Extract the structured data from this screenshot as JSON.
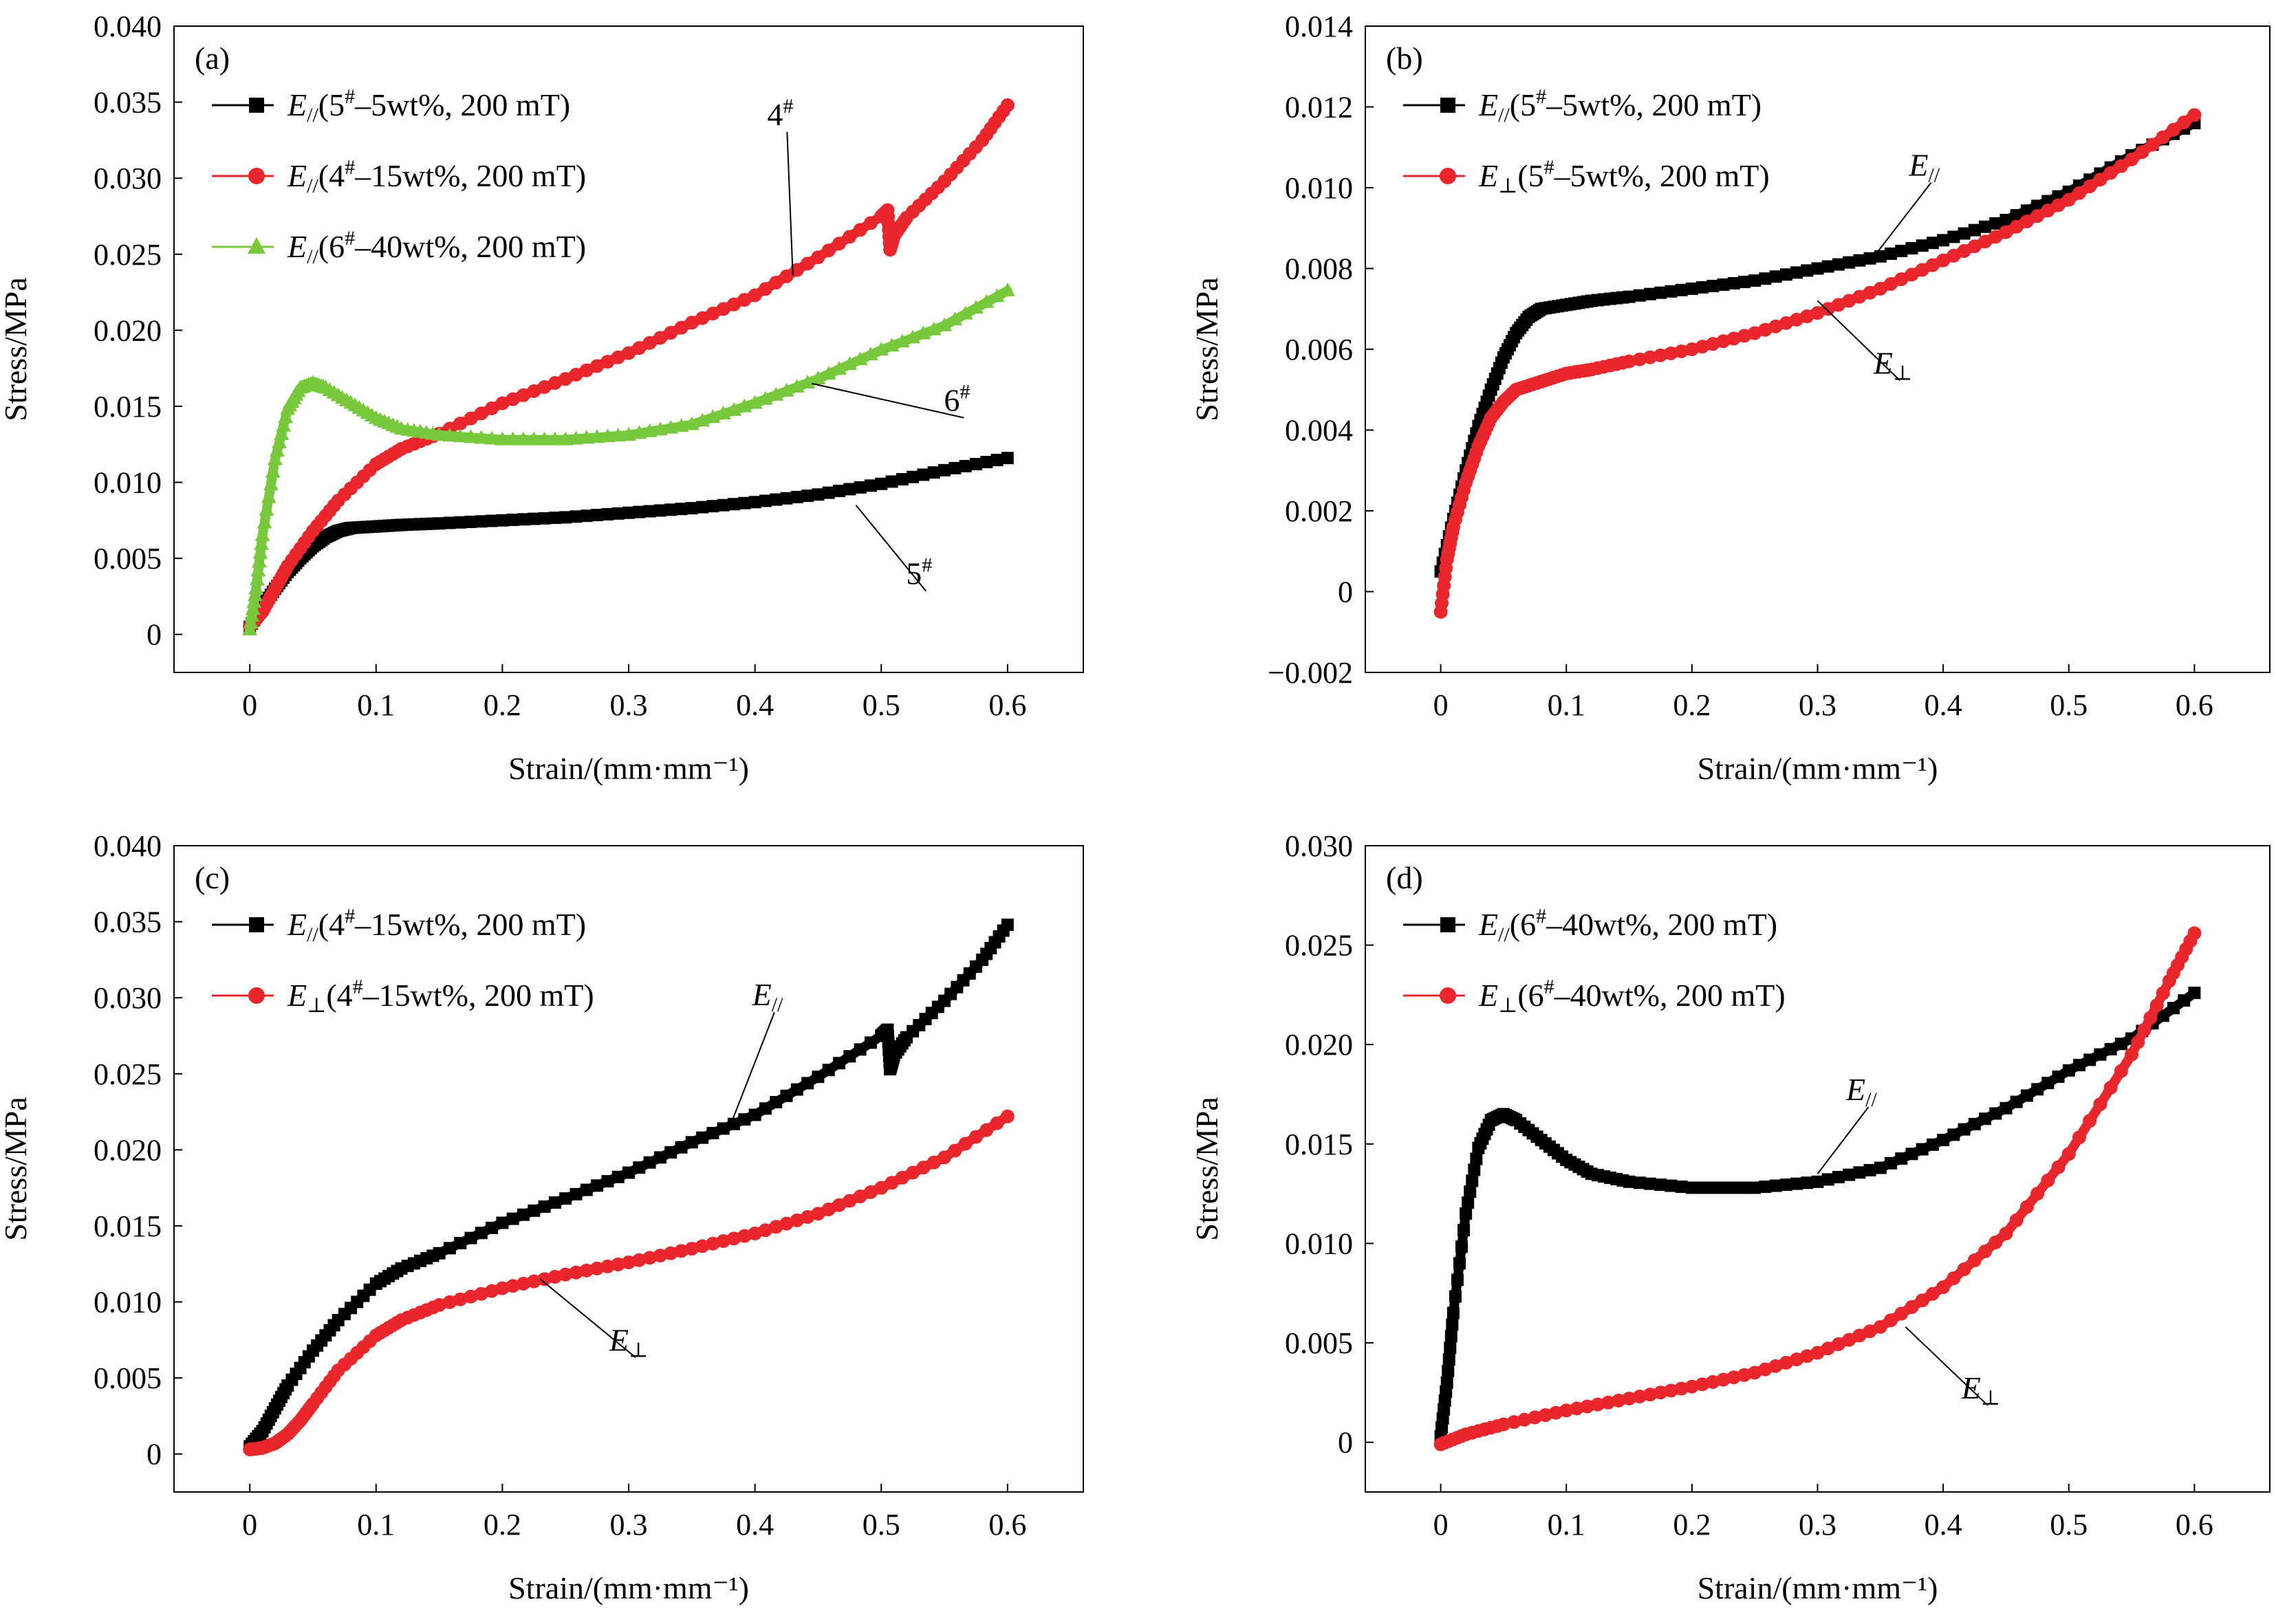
{
  "chart_data": [
    {
      "id": "a",
      "type": "line",
      "panel_label": "(a)",
      "xlabel": "Strain/(mm·mm⁻¹)",
      "ylabel": "Stress/MPa",
      "xlim": [
        -0.06,
        0.66
      ],
      "ylim": [
        -0.0025,
        0.04
      ],
      "xticks": [
        0,
        0.1,
        0.2,
        0.3,
        0.4,
        0.5,
        0.6
      ],
      "xtick_labels": [
        "0",
        "0.1",
        "0.2",
        "0.3",
        "0.4",
        "0.5",
        "0.6"
      ],
      "yticks": [
        0,
        0.005,
        0.01,
        0.015,
        0.02,
        0.025,
        0.03,
        0.035,
        0.04
      ],
      "ytick_labels": [
        "0",
        "0.005",
        "0.010",
        "0.015",
        "0.020",
        "0.025",
        "0.030",
        "0.035",
        "0.040"
      ],
      "legend_position": "top-left",
      "series": [
        {
          "name": "E//(5#–5wt%, 200 mT)",
          "legend_parts": [
            "E",
            "//",
            "(5",
            "#",
            "–5wt%, 200 mT)"
          ],
          "color": "#000000",
          "marker": "square",
          "x": [
            0,
            0.01,
            0.02,
            0.03,
            0.04,
            0.05,
            0.06,
            0.07,
            0.08,
            0.1,
            0.12,
            0.15,
            0.2,
            0.25,
            0.3,
            0.35,
            0.4,
            0.45,
            0.5,
            0.55,
            0.6
          ],
          "y": [
            0.0005,
            0.0018,
            0.003,
            0.0041,
            0.005,
            0.0058,
            0.0064,
            0.0068,
            0.007,
            0.0071,
            0.0072,
            0.0073,
            0.0075,
            0.0077,
            0.008,
            0.0083,
            0.0087,
            0.0092,
            0.0099,
            0.0108,
            0.0116
          ]
        },
        {
          "name": "E//(4#–15wt%, 200 mT)",
          "legend_parts": [
            "E",
            "//",
            "(4",
            "#",
            "–15wt%, 200 mT)"
          ],
          "color": "#e8262b",
          "marker": "circle",
          "x": [
            0,
            0.01,
            0.02,
            0.03,
            0.05,
            0.07,
            0.1,
            0.12,
            0.15,
            0.2,
            0.25,
            0.3,
            0.35,
            0.4,
            0.45,
            0.5,
            0.505,
            0.507,
            0.51,
            0.52,
            0.55,
            0.58,
            0.6
          ],
          "y": [
            0.0005,
            0.0015,
            0.003,
            0.0045,
            0.0068,
            0.0088,
            0.0112,
            0.0122,
            0.0132,
            0.0152,
            0.0168,
            0.0185,
            0.0205,
            0.0223,
            0.0248,
            0.0275,
            0.0279,
            0.0253,
            0.0262,
            0.0274,
            0.0298,
            0.0325,
            0.0348
          ]
        },
        {
          "name": "E//(6#–40wt%, 200 mT)",
          "legend_parts": [
            "E",
            "//",
            "(6",
            "#",
            "–40wt%, 200 mT)"
          ],
          "color": "#78c83c",
          "marker": "triangle",
          "x": [
            0,
            0.005,
            0.01,
            0.02,
            0.03,
            0.04,
            0.05,
            0.06,
            0.08,
            0.1,
            0.12,
            0.15,
            0.2,
            0.25,
            0.3,
            0.35,
            0.4,
            0.45,
            0.5,
            0.55,
            0.6
          ],
          "y": [
            0.0003,
            0.003,
            0.0065,
            0.0115,
            0.0148,
            0.0162,
            0.0165,
            0.0162,
            0.0152,
            0.0142,
            0.0135,
            0.0131,
            0.0128,
            0.0128,
            0.0131,
            0.0138,
            0.0152,
            0.0168,
            0.0187,
            0.0203,
            0.0226
          ]
        }
      ],
      "annotations": [
        {
          "base": "4",
          "sup": "#",
          "x": 0.42,
          "y": 0.0335,
          "ax": 0.43,
          "ay": 0.0236
        },
        {
          "base": "6",
          "sup": "#",
          "x": 0.56,
          "y": 0.0147,
          "ax": 0.445,
          "ay": 0.0165
        },
        {
          "base": "5",
          "sup": "#",
          "x": 0.53,
          "y": 0.0033,
          "ax": 0.48,
          "ay": 0.0085
        }
      ]
    },
    {
      "id": "b",
      "type": "line",
      "panel_label": "(b)",
      "xlabel": "Strain/(mm·mm⁻¹)",
      "ylabel": "Stress/MPa",
      "xlim": [
        -0.06,
        0.66
      ],
      "ylim": [
        -0.002,
        0.014
      ],
      "xticks": [
        0,
        0.1,
        0.2,
        0.3,
        0.4,
        0.5,
        0.6
      ],
      "xtick_labels": [
        "0",
        "0.1",
        "0.2",
        "0.3",
        "0.4",
        "0.5",
        "0.6"
      ],
      "yticks": [
        -0.002,
        0,
        0.002,
        0.004,
        0.006,
        0.008,
        0.01,
        0.012,
        0.014
      ],
      "ytick_labels": [
        "−0.002",
        "0",
        "0.002",
        "0.004",
        "0.006",
        "0.008",
        "0.010",
        "0.012",
        "0.014"
      ],
      "legend_position": "top-left",
      "series": [
        {
          "name": "E//(5#–5wt%, 200 mT)",
          "legend_parts": [
            "E",
            "//",
            "(5",
            "#",
            "–5wt%, 200 mT)"
          ],
          "color": "#000000",
          "marker": "square",
          "x": [
            0,
            0.01,
            0.02,
            0.03,
            0.04,
            0.05,
            0.06,
            0.07,
            0.08,
            0.1,
            0.12,
            0.15,
            0.2,
            0.25,
            0.3,
            0.35,
            0.4,
            0.45,
            0.5,
            0.55,
            0.6
          ],
          "y": [
            0.0005,
            0.0018,
            0.003,
            0.0041,
            0.005,
            0.0058,
            0.0064,
            0.0068,
            0.007,
            0.0071,
            0.0072,
            0.0073,
            0.0075,
            0.0077,
            0.008,
            0.0083,
            0.0087,
            0.0092,
            0.0099,
            0.0108,
            0.0116
          ]
        },
        {
          "name": "E⊥(5#–5wt%, 200 mT)",
          "legend_parts": [
            "E",
            "⊥",
            "(5",
            "#",
            "–5wt%, 200 mT)"
          ],
          "color": "#e8262b",
          "marker": "circle",
          "x": [
            0,
            0.005,
            0.01,
            0.02,
            0.03,
            0.04,
            0.05,
            0.06,
            0.08,
            0.1,
            0.12,
            0.15,
            0.2,
            0.25,
            0.3,
            0.35,
            0.4,
            0.45,
            0.5,
            0.55,
            0.6
          ],
          "y": [
            -0.0005,
            0.0008,
            0.0016,
            0.0027,
            0.0036,
            0.0043,
            0.0047,
            0.005,
            0.0052,
            0.0054,
            0.0055,
            0.0057,
            0.006,
            0.0064,
            0.0069,
            0.0075,
            0.0082,
            0.0089,
            0.0097,
            0.0107,
            0.0118
          ]
        }
      ],
      "annotations": [
        {
          "base": "E",
          "sub": "//",
          "x": 0.385,
          "y": 0.0103,
          "ax": 0.34,
          "ay": 0.0081
        },
        {
          "base": "E",
          "sub": "⊥",
          "x": 0.36,
          "y": 0.0054,
          "ax": 0.3,
          "ay": 0.0072
        }
      ]
    },
    {
      "id": "c",
      "type": "line",
      "panel_label": "(c)",
      "xlabel": "Strain/(mm·mm⁻¹)",
      "ylabel": "Stress/MPa",
      "xlim": [
        -0.06,
        0.66
      ],
      "ylim": [
        -0.0025,
        0.04
      ],
      "xticks": [
        0,
        0.1,
        0.2,
        0.3,
        0.4,
        0.5,
        0.6
      ],
      "xtick_labels": [
        "0",
        "0.1",
        "0.2",
        "0.3",
        "0.4",
        "0.5",
        "0.6"
      ],
      "yticks": [
        0,
        0.005,
        0.01,
        0.015,
        0.02,
        0.025,
        0.03,
        0.035,
        0.04
      ],
      "ytick_labels": [
        "0",
        "0.005",
        "0.010",
        "0.015",
        "0.020",
        "0.025",
        "0.030",
        "0.035",
        "0.040"
      ],
      "legend_position": "top-left",
      "series": [
        {
          "name": "E//(4#–15wt%, 200 mT)",
          "legend_parts": [
            "E",
            "//",
            "(4",
            "#",
            "–15wt%, 200 mT)"
          ],
          "color": "#000000",
          "marker": "square",
          "x": [
            0,
            0.01,
            0.02,
            0.03,
            0.05,
            0.07,
            0.1,
            0.12,
            0.15,
            0.2,
            0.25,
            0.3,
            0.35,
            0.4,
            0.45,
            0.5,
            0.505,
            0.507,
            0.51,
            0.52,
            0.55,
            0.58,
            0.6
          ],
          "y": [
            0.0005,
            0.0015,
            0.003,
            0.0045,
            0.0068,
            0.0088,
            0.0112,
            0.0122,
            0.0132,
            0.0152,
            0.0168,
            0.0185,
            0.0205,
            0.0223,
            0.0248,
            0.0275,
            0.0279,
            0.0253,
            0.0262,
            0.0274,
            0.0298,
            0.0325,
            0.0348
          ]
        },
        {
          "name": "E⊥(4#–15wt%, 200 mT)",
          "legend_parts": [
            "E",
            "⊥",
            "(4",
            "#",
            "–15wt%, 200 mT)"
          ],
          "color": "#e8262b",
          "marker": "circle",
          "x": [
            0,
            0.01,
            0.02,
            0.03,
            0.04,
            0.05,
            0.07,
            0.1,
            0.12,
            0.15,
            0.2,
            0.25,
            0.3,
            0.35,
            0.4,
            0.45,
            0.5,
            0.55,
            0.6
          ],
          "y": [
            0.0003,
            0.0004,
            0.0007,
            0.0013,
            0.0022,
            0.0033,
            0.0055,
            0.0078,
            0.0088,
            0.0098,
            0.0109,
            0.0118,
            0.0126,
            0.0135,
            0.0145,
            0.0158,
            0.0175,
            0.0195,
            0.0222
          ]
        }
      ],
      "annotations": [
        {
          "base": "E",
          "sub": "//",
          "x": 0.41,
          "y": 0.0295,
          "ax": 0.38,
          "ay": 0.0215
        },
        {
          "base": "E",
          "sub": "⊥",
          "x": 0.3,
          "y": 0.0068,
          "ax": 0.23,
          "ay": 0.0115
        }
      ]
    },
    {
      "id": "d",
      "type": "line",
      "panel_label": "(d)",
      "xlabel": "Strain/(mm·mm⁻¹)",
      "ylabel": "Stress/MPa",
      "xlim": [
        -0.06,
        0.66
      ],
      "ylim": [
        -0.0025,
        0.03
      ],
      "xticks": [
        0,
        0.1,
        0.2,
        0.3,
        0.4,
        0.5,
        0.6
      ],
      "xtick_labels": [
        "0",
        "0.1",
        "0.2",
        "0.3",
        "0.4",
        "0.5",
        "0.6"
      ],
      "yticks": [
        0,
        0.005,
        0.01,
        0.015,
        0.02,
        0.025,
        0.03
      ],
      "ytick_labels": [
        "0",
        "0.005",
        "0.010",
        "0.015",
        "0.020",
        "0.025",
        "0.030"
      ],
      "legend_position": "top-left",
      "series": [
        {
          "name": "E//(6#–40wt%, 200 mT)",
          "legend_parts": [
            "E",
            "//",
            "(6",
            "#",
            "–40wt%, 200 mT)"
          ],
          "color": "#000000",
          "marker": "square",
          "x": [
            0,
            0.005,
            0.01,
            0.02,
            0.03,
            0.04,
            0.05,
            0.06,
            0.08,
            0.1,
            0.12,
            0.15,
            0.2,
            0.25,
            0.3,
            0.35,
            0.4,
            0.45,
            0.5,
            0.55,
            0.6
          ],
          "y": [
            0.0003,
            0.003,
            0.0065,
            0.0115,
            0.0148,
            0.0162,
            0.0165,
            0.0162,
            0.0152,
            0.0142,
            0.0135,
            0.0131,
            0.0128,
            0.0128,
            0.0131,
            0.0138,
            0.0152,
            0.0168,
            0.0187,
            0.0203,
            0.0226
          ]
        },
        {
          "name": "E⊥(6#–40wt%, 200 mT)",
          "legend_parts": [
            "E",
            "⊥",
            "(6",
            "#",
            "–40wt%, 200 mT)"
          ],
          "color": "#e8262b",
          "marker": "circle",
          "x": [
            0,
            0.02,
            0.05,
            0.1,
            0.15,
            0.2,
            0.25,
            0.3,
            0.35,
            0.4,
            0.45,
            0.5,
            0.55,
            0.58,
            0.6
          ],
          "y": [
            -0.0001,
            0.0004,
            0.0009,
            0.0016,
            0.0022,
            0.0028,
            0.0035,
            0.0045,
            0.0058,
            0.0078,
            0.0105,
            0.0145,
            0.0195,
            0.0232,
            0.0256
          ]
        }
      ],
      "annotations": [
        {
          "base": "E",
          "sub": "//",
          "x": 0.335,
          "y": 0.0172,
          "ax": 0.3,
          "ay": 0.0135
        },
        {
          "base": "E",
          "sub": "⊥",
          "x": 0.43,
          "y": 0.0022,
          "ax": 0.37,
          "ay": 0.0058
        }
      ]
    }
  ]
}
